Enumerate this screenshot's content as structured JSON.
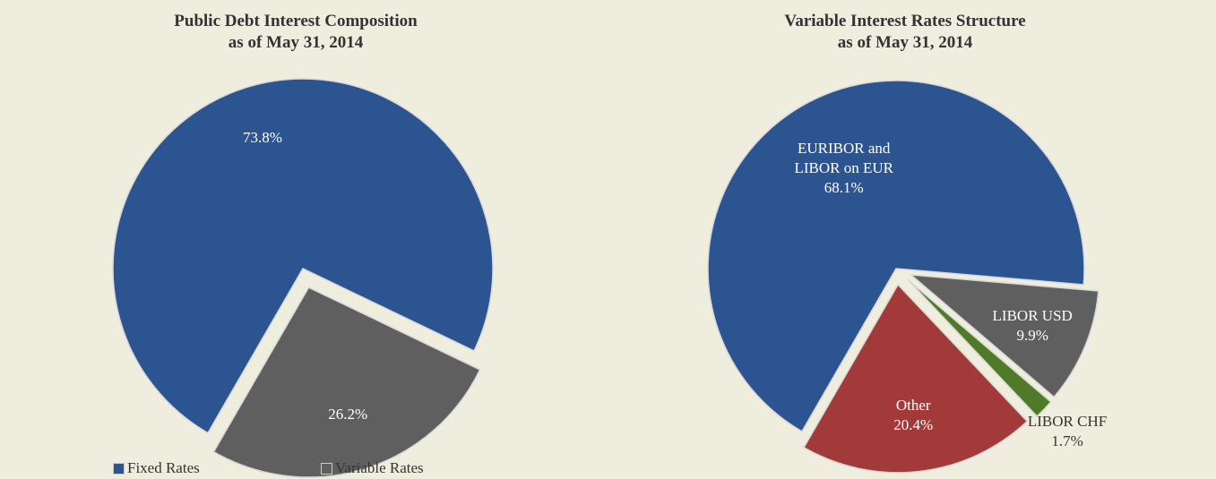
{
  "chart_data": [
    {
      "type": "pie",
      "title": "Public Debt Interest Composition",
      "subtitle": "as of May 31, 2014",
      "categories": [
        "Fixed Rates",
        "Variable Rates"
      ],
      "values": [
        73.8,
        26.2
      ],
      "value_labels": [
        "73.8%",
        "26.2%"
      ],
      "colors": [
        "#2b5491",
        "#5f5f5f"
      ],
      "legend": "bottom"
    },
    {
      "type": "pie",
      "title": "Variable Interest Rates Structure",
      "subtitle": "as of May 31, 2014",
      "categories": [
        "EURIBOR and LIBOR on EUR",
        "LIBOR USD",
        "LIBOR CHF",
        "Other"
      ],
      "values": [
        68.1,
        9.9,
        1.7,
        20.4
      ],
      "value_labels": [
        "68.1%",
        "9.9%",
        "1.7%",
        "20.4%"
      ],
      "colors": [
        "#2b5491",
        "#5f5f5f",
        "#4f7a28",
        "#a33a3a"
      ]
    }
  ]
}
